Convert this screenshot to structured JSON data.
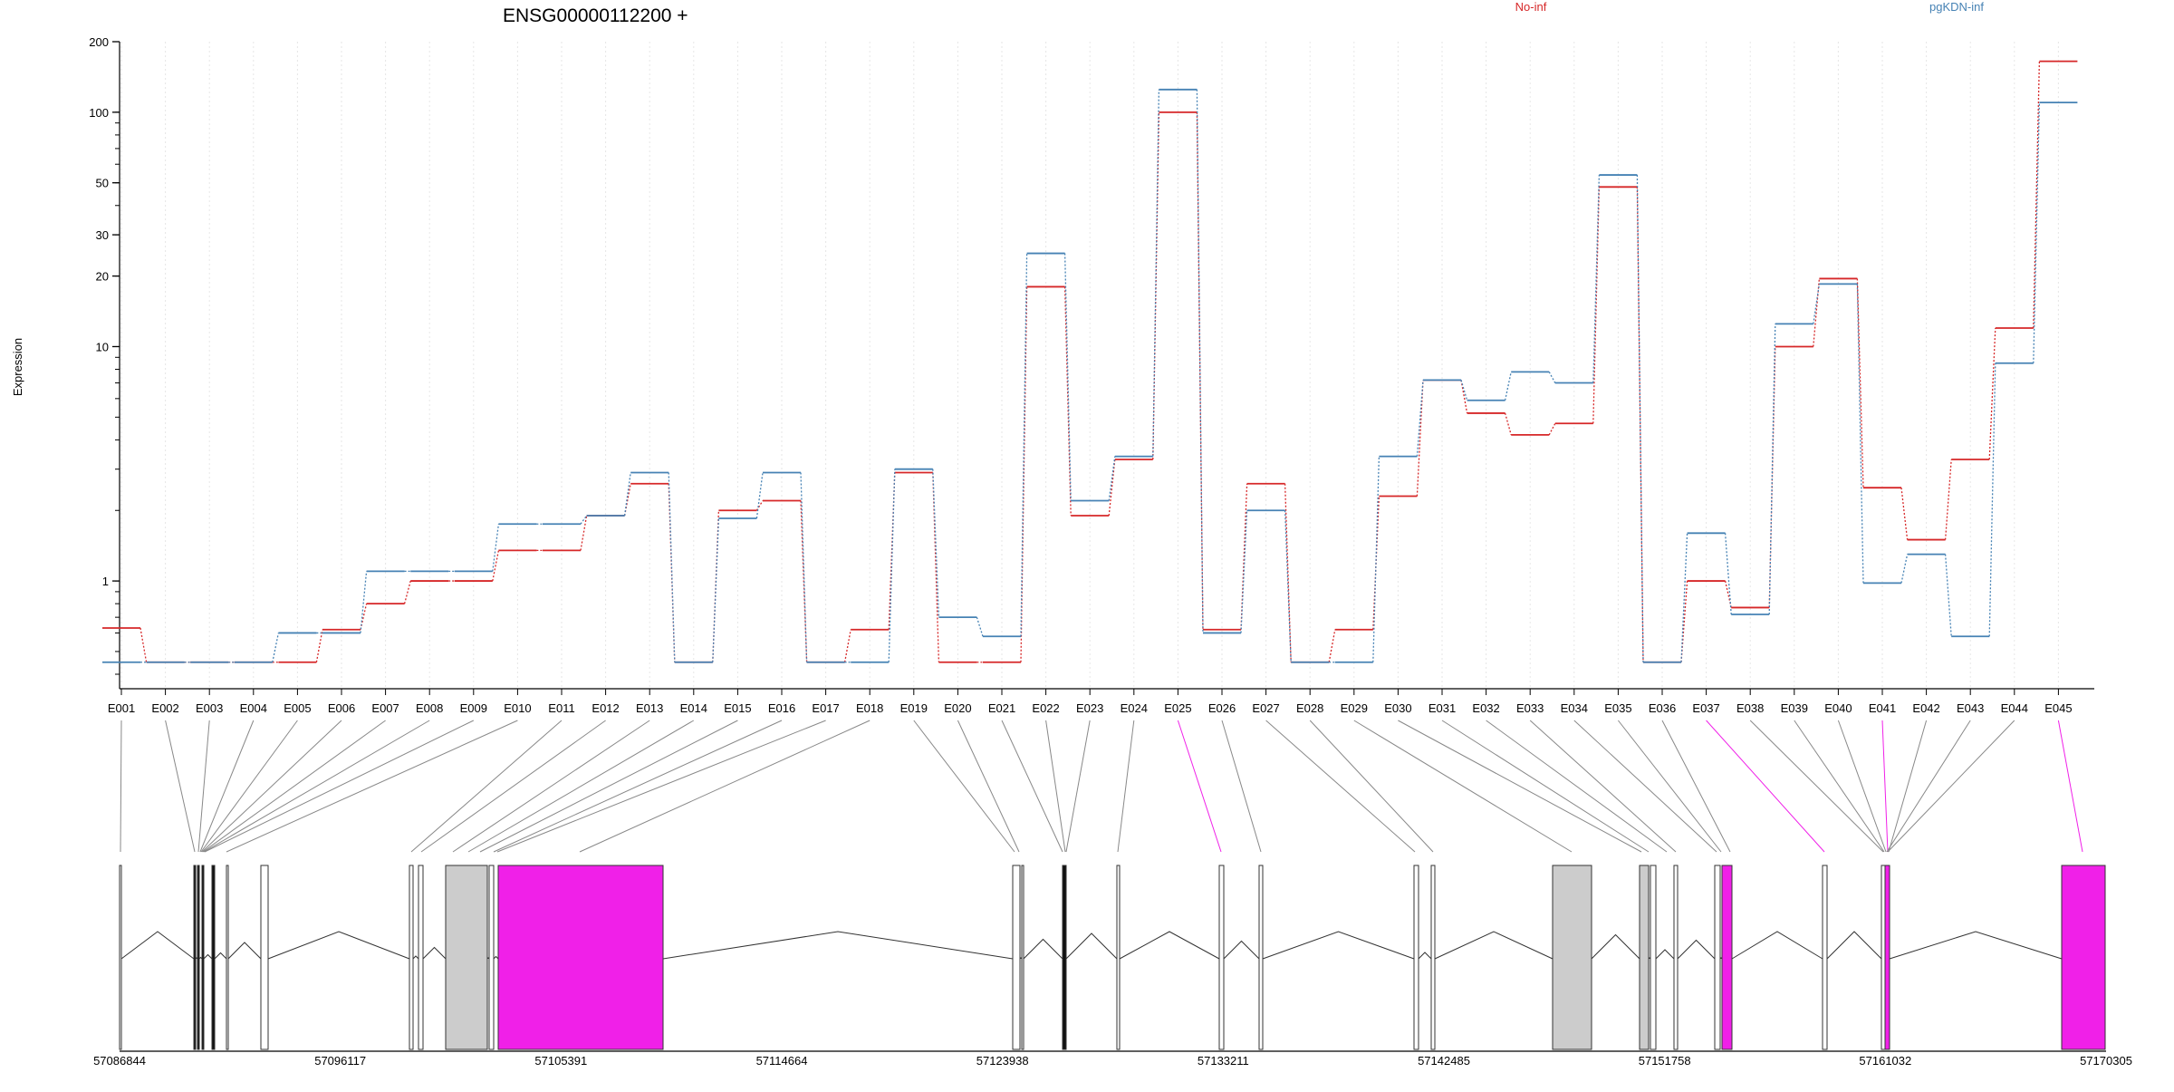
{
  "chart_data": {
    "type": "line",
    "title": "ENSG00000112200 +",
    "xlabel": "",
    "ylabel": "Expression",
    "y_scale": "log",
    "ylim": [
      0.4,
      200
    ],
    "y_ticks": [
      200,
      100,
      50,
      30,
      20,
      10,
      1
    ],
    "legend_placement": "top",
    "grid": "vertical dotted lines at each exon",
    "categories": [
      "E001",
      "E002",
      "E003",
      "E004",
      "E005",
      "E006",
      "E007",
      "E008",
      "E009",
      "E010",
      "E011",
      "E012",
      "E013",
      "E014",
      "E015",
      "E016",
      "E017",
      "E018",
      "E019",
      "E020",
      "E021",
      "E022",
      "E023",
      "E024",
      "E025",
      "E026",
      "E027",
      "E028",
      "E029",
      "E030",
      "E031",
      "E032",
      "E033",
      "E034",
      "E035",
      "E036",
      "E037",
      "E038",
      "E039",
      "E040",
      "E041",
      "E042",
      "E043",
      "E044",
      "E045"
    ],
    "series": [
      {
        "name": "No-inf",
        "color": "#d62728",
        "values": [
          0.63,
          0.45,
          0.45,
          0.45,
          0.45,
          0.62,
          0.8,
          1.0,
          1.0,
          1.35,
          1.35,
          1.9,
          2.6,
          0.45,
          2.0,
          2.2,
          0.45,
          0.62,
          2.9,
          0.45,
          0.45,
          18.0,
          1.9,
          3.3,
          100,
          0.62,
          2.6,
          0.45,
          0.62,
          2.3,
          7.2,
          5.2,
          4.2,
          4.7,
          48,
          0.45,
          1.0,
          0.77,
          10.0,
          19.5,
          2.5,
          1.5,
          3.3,
          12.0,
          165
        ]
      },
      {
        "name": "pgKDN-inf",
        "color": "#4682b4",
        "values": [
          0.45,
          0.45,
          0.45,
          0.45,
          0.6,
          0.6,
          1.1,
          1.1,
          1.1,
          1.75,
          1.75,
          1.9,
          2.9,
          0.45,
          1.85,
          2.9,
          0.45,
          0.45,
          3.0,
          0.7,
          0.58,
          25.0,
          2.2,
          3.4,
          125,
          0.6,
          2.0,
          0.45,
          0.45,
          3.4,
          7.2,
          5.9,
          7.8,
          7.0,
          54,
          0.45,
          1.6,
          0.72,
          12.5,
          18.5,
          0.98,
          1.3,
          0.58,
          8.5,
          110
        ]
      }
    ],
    "gene_model": {
      "genomic_axis_labels": [
        "57086844",
        "57096117",
        "57105391",
        "57114664",
        "57123938",
        "57133211",
        "57142485",
        "57151758",
        "57161032",
        "57170305"
      ],
      "highlighted_exons": [
        "E025",
        "E037",
        "E041",
        "E045"
      ],
      "highlight_color": "#f020e8",
      "exon_fill_colors": {
        "plain": "#ffffff",
        "shaded": "#cccccc"
      }
    }
  }
}
